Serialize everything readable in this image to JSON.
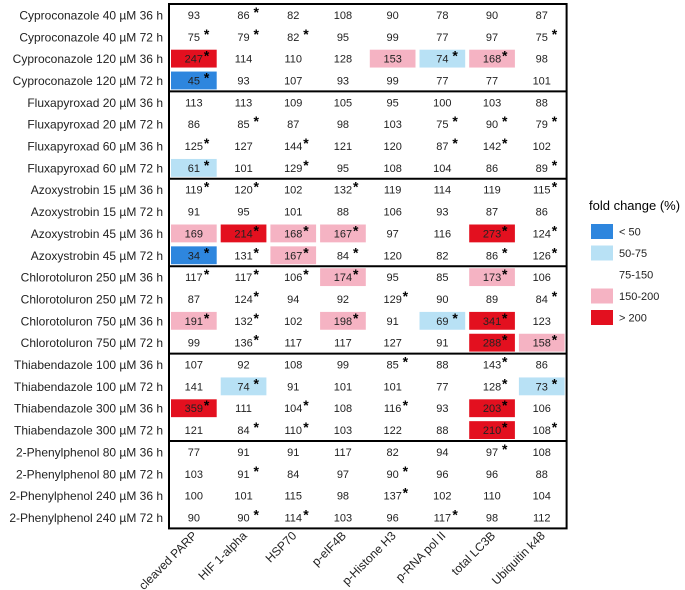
{
  "chart_data": {
    "type": "heatmap",
    "title": "",
    "xlabel": "",
    "ylabel": "",
    "columns": [
      "cleaved PARP",
      "HIF 1-alpha",
      "HSP70",
      "p-eIF4B",
      "p-Histone H3",
      "p-RNA pol II",
      "total LC3B",
      "Ubiquitin k48"
    ],
    "rows": [
      {
        "label": "Cyproconazole 40 µM 36 h",
        "values": [
          93,
          86,
          82,
          108,
          90,
          78,
          90,
          87
        ],
        "star": [
          0,
          1,
          0,
          0,
          0,
          0,
          0,
          0
        ]
      },
      {
        "label": "Cyproconazole 40 µM 72 h",
        "values": [
          75,
          79,
          82,
          95,
          99,
          77,
          97,
          75
        ],
        "star": [
          1,
          1,
          1,
          0,
          0,
          0,
          0,
          1
        ]
      },
      {
        "label": "Cyproconazole 120 µM 36 h",
        "values": [
          247,
          114,
          110,
          128,
          153,
          74,
          168,
          98
        ],
        "star": [
          1,
          0,
          0,
          0,
          0,
          1,
          1,
          0
        ]
      },
      {
        "label": "Cyproconazole 120 µM 72 h",
        "values": [
          45,
          93,
          107,
          93,
          99,
          77,
          77,
          101
        ],
        "star": [
          1,
          0,
          0,
          0,
          0,
          0,
          0,
          0
        ]
      },
      {
        "label": "Fluxapyroxad 20 µM 36 h",
        "values": [
          113,
          113,
          109,
          105,
          95,
          100,
          103,
          88
        ],
        "star": [
          0,
          0,
          0,
          0,
          0,
          0,
          0,
          0
        ]
      },
      {
        "label": "Fluxapyroxad 20 µM 72 h",
        "values": [
          86,
          85,
          87,
          98,
          103,
          75,
          90,
          79
        ],
        "star": [
          0,
          1,
          0,
          0,
          0,
          1,
          1,
          1
        ]
      },
      {
        "label": "Fluxapyroxad 60 µM 36 h",
        "values": [
          125,
          127,
          144,
          121,
          120,
          87,
          142,
          102
        ],
        "star": [
          1,
          0,
          1,
          0,
          0,
          1,
          1,
          0
        ]
      },
      {
        "label": "Fluxapyroxad 60 µM 72 h",
        "values": [
          61,
          101,
          129,
          95,
          108,
          104,
          86,
          89
        ],
        "star": [
          1,
          0,
          1,
          0,
          0,
          0,
          0,
          1
        ]
      },
      {
        "label": "Azoxystrobin 15 µM 36 h",
        "values": [
          119,
          120,
          102,
          132,
          119,
          114,
          119,
          115
        ],
        "star": [
          1,
          1,
          0,
          1,
          0,
          0,
          0,
          1
        ]
      },
      {
        "label": "Azoxystrobin 15 µM 72 h",
        "values": [
          91,
          95,
          101,
          88,
          106,
          93,
          87,
          86
        ],
        "star": [
          0,
          0,
          0,
          0,
          0,
          0,
          0,
          0
        ]
      },
      {
        "label": "Azoxystrobin 45 µM 36 h",
        "values": [
          169,
          214,
          168,
          167,
          97,
          116,
          273,
          124
        ],
        "star": [
          0,
          1,
          1,
          1,
          0,
          0,
          1,
          1
        ]
      },
      {
        "label": "Azoxystrobin 45 µM 72 h",
        "values": [
          34,
          131,
          167,
          84,
          120,
          82,
          86,
          126
        ],
        "star": [
          1,
          1,
          1,
          1,
          0,
          0,
          1,
          1
        ]
      },
      {
        "label": "Chlorotoluron 250 µM 36 h",
        "values": [
          117,
          117,
          106,
          174,
          95,
          85,
          173,
          106
        ],
        "star": [
          1,
          1,
          1,
          1,
          0,
          0,
          1,
          0
        ]
      },
      {
        "label": "Chlorotoluron 250 µM 72 h",
        "values": [
          87,
          124,
          94,
          92,
          129,
          90,
          89,
          84
        ],
        "star": [
          0,
          1,
          0,
          0,
          1,
          0,
          0,
          1
        ]
      },
      {
        "label": "Chlorotoluron 750 µM 36 h",
        "values": [
          191,
          132,
          102,
          198,
          91,
          69,
          341,
          123
        ],
        "star": [
          1,
          1,
          0,
          1,
          0,
          1,
          1,
          0
        ]
      },
      {
        "label": "Chlorotoluron 750 µM 72 h",
        "values": [
          99,
          136,
          117,
          117,
          127,
          91,
          288,
          158
        ],
        "star": [
          0,
          1,
          0,
          0,
          0,
          0,
          1,
          1
        ]
      },
      {
        "label": "Thiabendazole 100 µM 36 h",
        "values": [
          107,
          92,
          108,
          99,
          85,
          88,
          143,
          86
        ],
        "star": [
          0,
          0,
          0,
          0,
          1,
          0,
          1,
          0
        ]
      },
      {
        "label": "Thiabendazole 100 µM 72 h",
        "values": [
          141,
          74,
          91,
          101,
          101,
          77,
          128,
          73
        ],
        "star": [
          0,
          1,
          0,
          0,
          0,
          0,
          1,
          1
        ]
      },
      {
        "label": "Thiabendazole 300 µM 36 h",
        "values": [
          359,
          111,
          104,
          108,
          116,
          93,
          203,
          106
        ],
        "star": [
          1,
          0,
          1,
          0,
          1,
          0,
          1,
          0
        ]
      },
      {
        "label": "Thiabendazole 300 µM 72 h",
        "values": [
          121,
          84,
          110,
          103,
          122,
          88,
          210,
          108
        ],
        "star": [
          0,
          1,
          1,
          0,
          0,
          0,
          1,
          1
        ]
      },
      {
        "label": "2-Phenylphenol 80 µM 36 h",
        "values": [
          77,
          91,
          91,
          117,
          82,
          94,
          97,
          108
        ],
        "star": [
          0,
          0,
          0,
          0,
          0,
          0,
          1,
          0
        ]
      },
      {
        "label": "2-Phenylphenol 80 µM 72 h",
        "values": [
          103,
          91,
          84,
          97,
          90,
          96,
          96,
          88
        ],
        "star": [
          0,
          1,
          0,
          0,
          1,
          0,
          0,
          0
        ]
      },
      {
        "label": "2-Phenylphenol 240 µM 36 h",
        "values": [
          100,
          101,
          115,
          98,
          137,
          102,
          110,
          104
        ],
        "star": [
          0,
          0,
          0,
          0,
          1,
          0,
          0,
          0
        ]
      },
      {
        "label": "2-Phenylphenol 240 µM 72 h",
        "values": [
          90,
          90,
          114,
          103,
          96,
          117,
          98,
          112
        ],
        "star": [
          0,
          1,
          1,
          0,
          0,
          1,
          0,
          0
        ]
      }
    ],
    "groups": [
      {
        "name": "Cyproconazole",
        "row_count": 4
      },
      {
        "name": "Fluxapyroxad",
        "row_count": 4
      },
      {
        "name": "Azoxystrobin",
        "row_count": 4
      },
      {
        "name": "Chlorotoluron",
        "row_count": 4
      },
      {
        "name": "Thiabendazole",
        "row_count": 4
      },
      {
        "name": "2-Phenylphenol",
        "row_count": 4
      }
    ],
    "star_symbol": "*",
    "legend": {
      "title": "fold change (%)",
      "placement": "right",
      "items": [
        {
          "label": "< 50",
          "color": "#2e86de",
          "min": null,
          "max": 50
        },
        {
          "label": "50-75",
          "color": "#b8e1f5",
          "min": 50,
          "max": 75
        },
        {
          "label": "75-150",
          "color": "#ffffff",
          "min": 75,
          "max": 150
        },
        {
          "label": "150-200",
          "color": "#f5b3c3",
          "min": 150,
          "max": 200
        },
        {
          "label": "> 200",
          "color": "#e3101f",
          "min": 200,
          "max": null
        }
      ]
    }
  }
}
